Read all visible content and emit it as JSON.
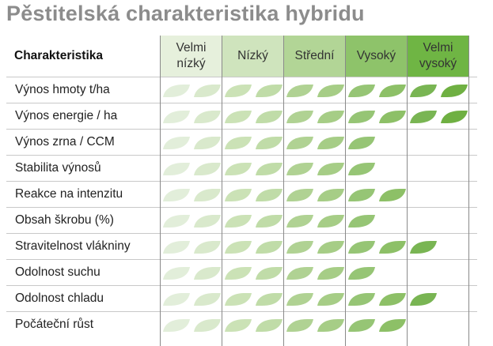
{
  "title": "Pěstitelská charakteristika hybridu",
  "header_label": "Charakteristika",
  "levels": [
    {
      "label": "Velmi\nnízký",
      "color": "#e6f0dc"
    },
    {
      "label": "Nízký",
      "color": "#cfe4bd"
    },
    {
      "label": "Střední",
      "color": "#b2d596"
    },
    {
      "label": "Vysoký",
      "color": "#8ec36a"
    },
    {
      "label": "Velmi\nvysoký",
      "color": "#6fb544"
    }
  ],
  "leaf_colors": [
    "#e2eeda",
    "#d9e9cc",
    "#cbe2b6",
    "#c0dca8",
    "#b0d293",
    "#a6cd86",
    "#96c575",
    "#8dc067",
    "#79b553",
    "#6fb042"
  ],
  "rows": [
    {
      "label": "Výnos hmoty t/ha",
      "rating": 10
    },
    {
      "label": "Výnos energie / ha",
      "rating": 10
    },
    {
      "label": "Výnos zrna / CCM",
      "rating": 7
    },
    {
      "label": "Stabilita výnosů",
      "rating": 7
    },
    {
      "label": "Reakce na intenzitu",
      "rating": 8
    },
    {
      "label": "Obsah škrobu (%)",
      "rating": 7
    },
    {
      "label": "Stravitelnost vlákniny",
      "rating": 9
    },
    {
      "label": "Odolnost suchu",
      "rating": 7
    },
    {
      "label": "Odolnost chladu",
      "rating": 9
    },
    {
      "label": "Počáteční růst",
      "rating": 8
    }
  ]
}
